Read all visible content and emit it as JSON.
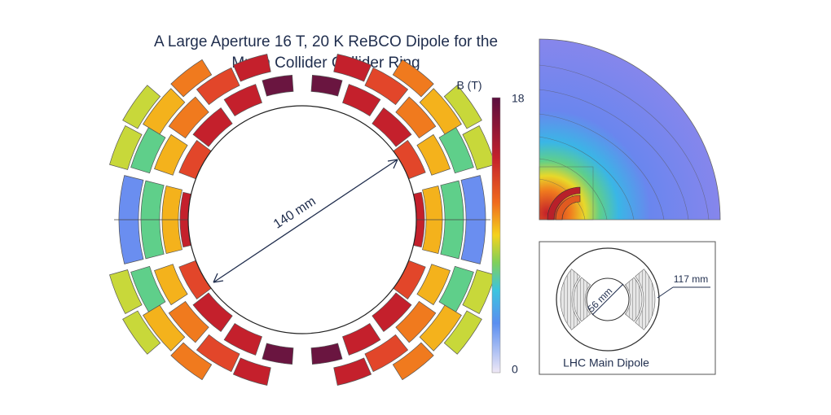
{
  "title": [
    "A Large Aperture 16 T, 20 K ReBCO Dipole for the",
    "Muon Collider Collider Ring"
  ],
  "main_magnet": {
    "aperture_label": "140 mm"
  },
  "colorbar": {
    "label": "B (T)",
    "ticks": [
      18,
      0
    ]
  },
  "inset": {
    "aperture_label": "56 mm",
    "outer_label": "117 mm",
    "caption": "LHC Main Dipole"
  }
}
